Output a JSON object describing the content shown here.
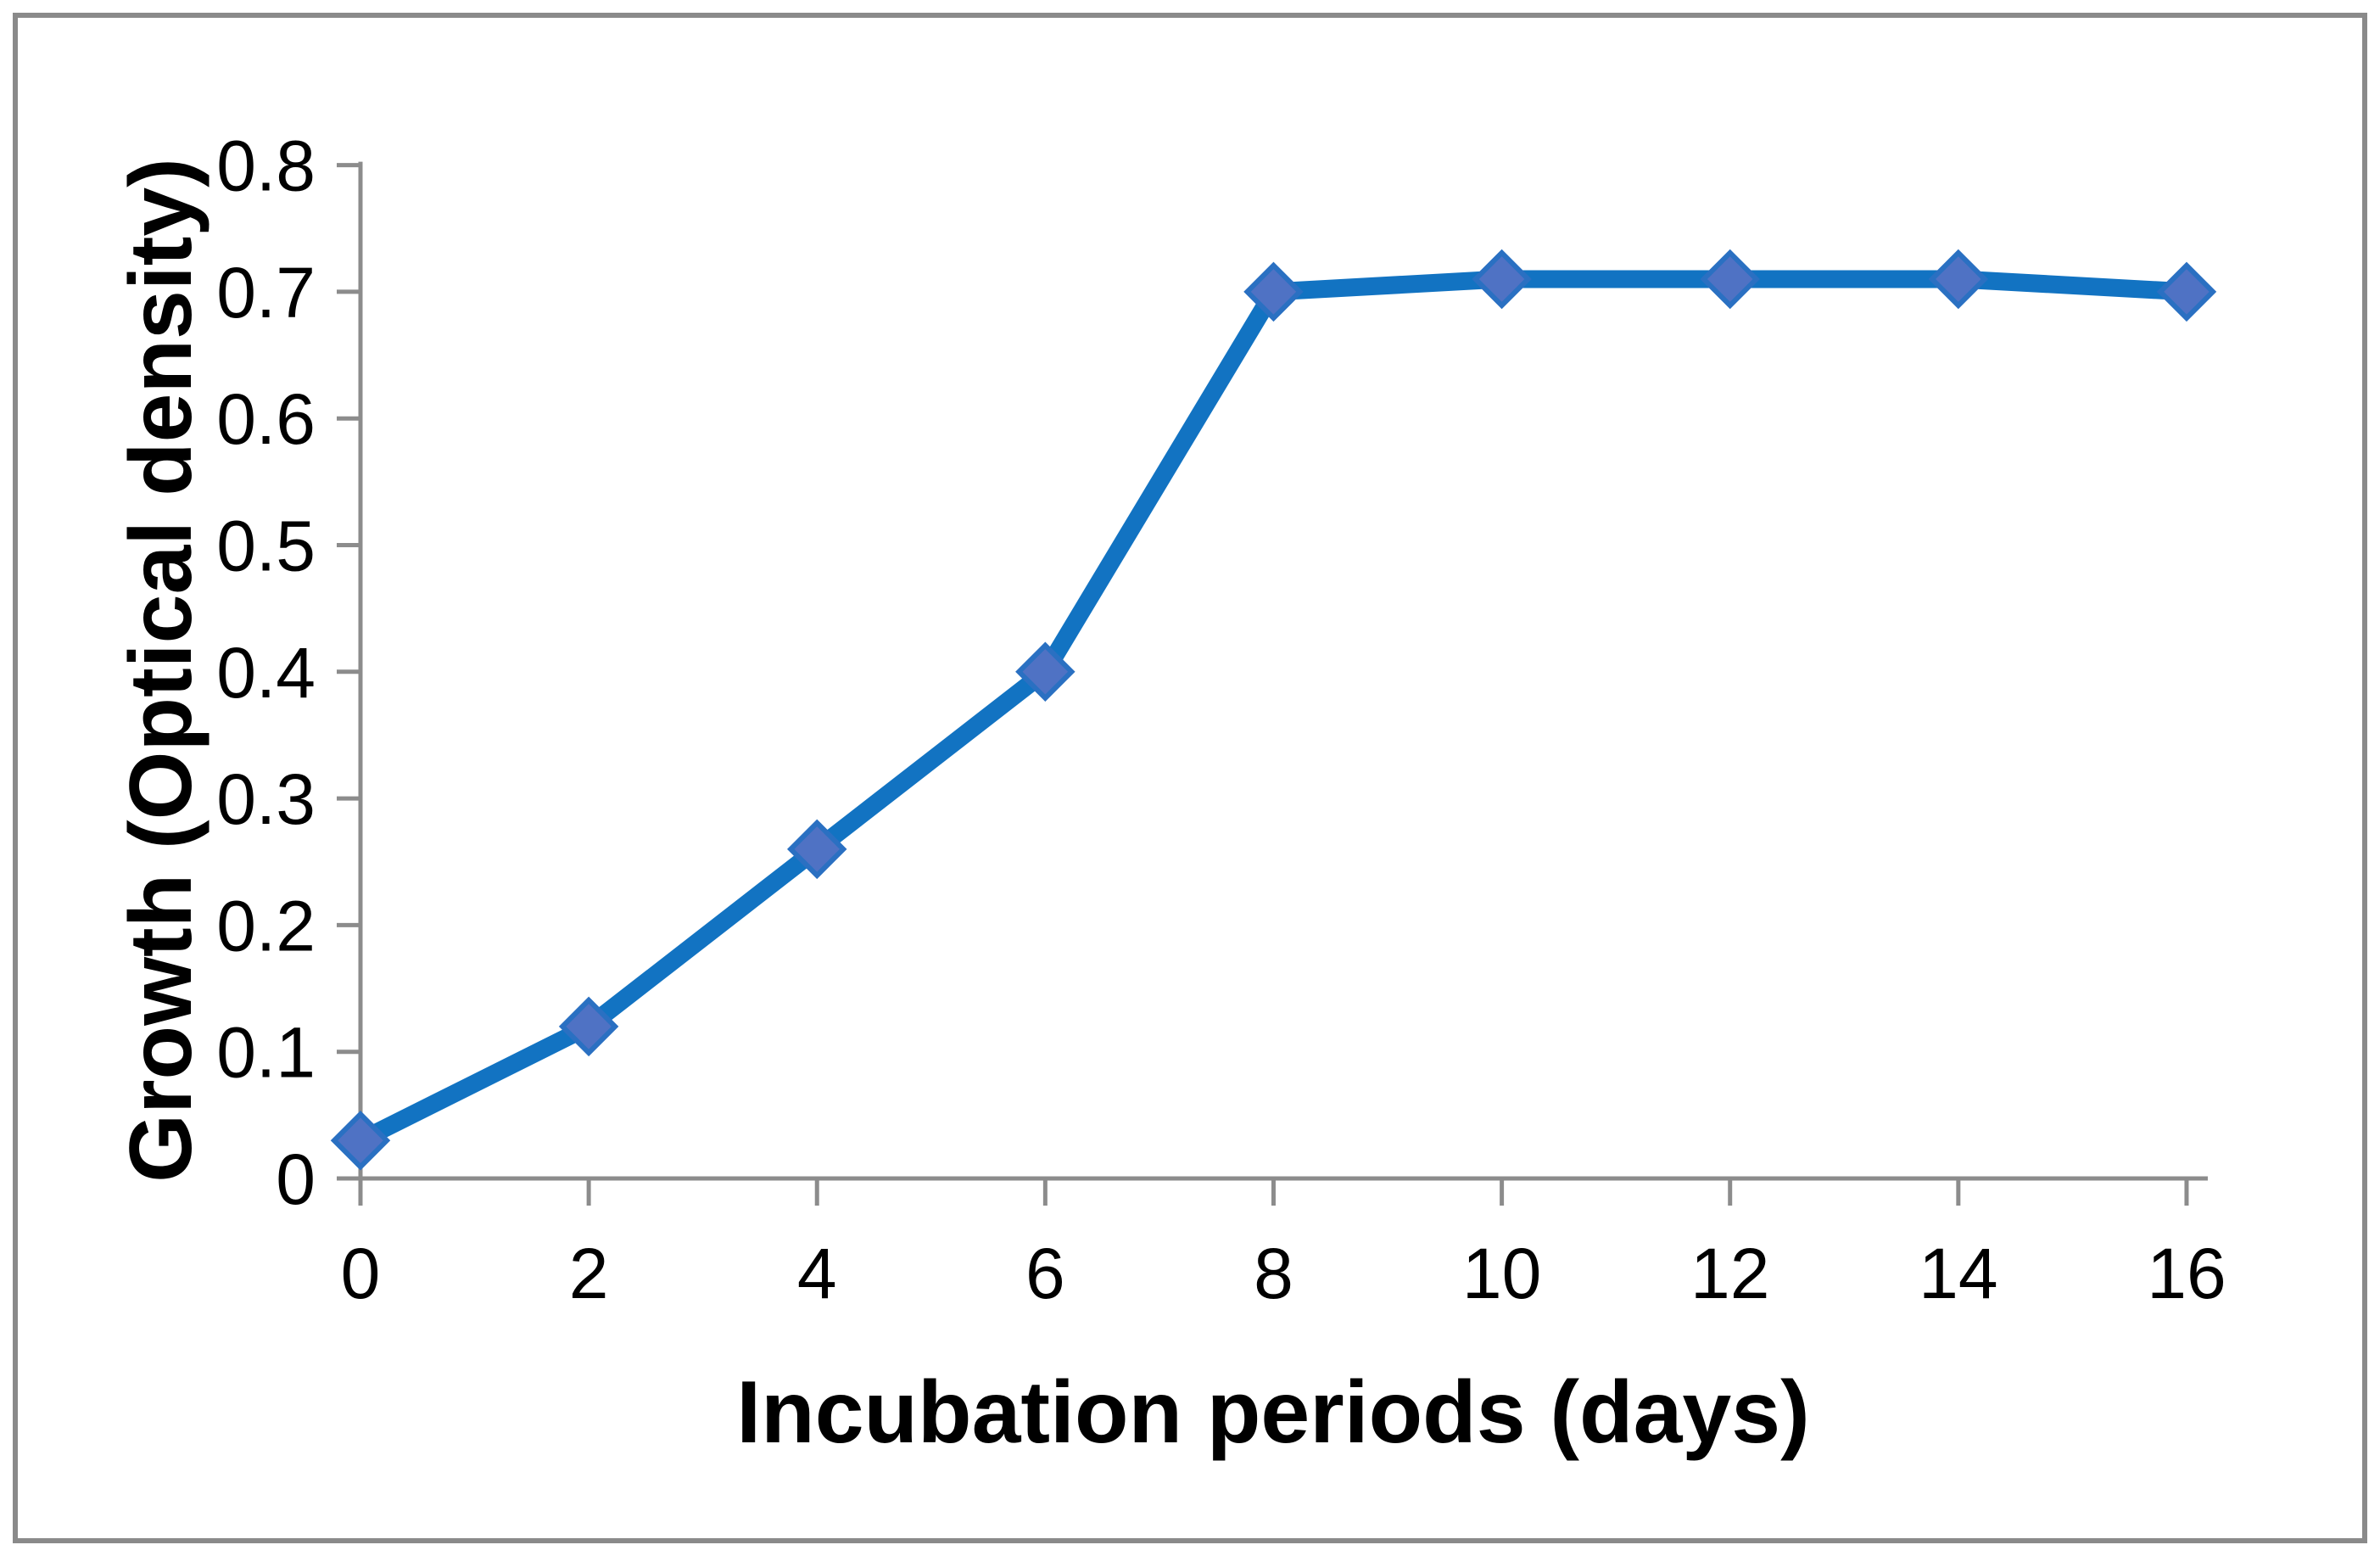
{
  "chart_data": {
    "type": "line",
    "title": "",
    "xlabel": "Incubation periods (days)",
    "ylabel": "Growth (Optical density)",
    "x": [
      0,
      2,
      4,
      6,
      8,
      10,
      12,
      14,
      16
    ],
    "series": [
      {
        "name": "Growth (Optical density)",
        "values": [
          0.03,
          0.12,
          0.26,
          0.4,
          0.7,
          0.71,
          0.71,
          0.71,
          0.7
        ]
      }
    ],
    "xlim": [
      0,
      16
    ],
    "ylim": [
      0,
      0.8
    ],
    "x_ticks": [
      0,
      2,
      4,
      6,
      8,
      10,
      12,
      14,
      16
    ],
    "y_ticks": [
      0,
      0.1,
      0.2,
      0.3,
      0.4,
      0.5,
      0.6,
      0.7,
      0.8
    ],
    "grid": false,
    "legend": "none",
    "marker_shape": "diamond",
    "colors": {
      "line": "#1273C2",
      "marker_fill": "#4F72C4",
      "marker_stroke": "#2A70C2",
      "axis": "#8C8C8C",
      "frame": "#8A8A8A",
      "text": "#000000"
    }
  }
}
